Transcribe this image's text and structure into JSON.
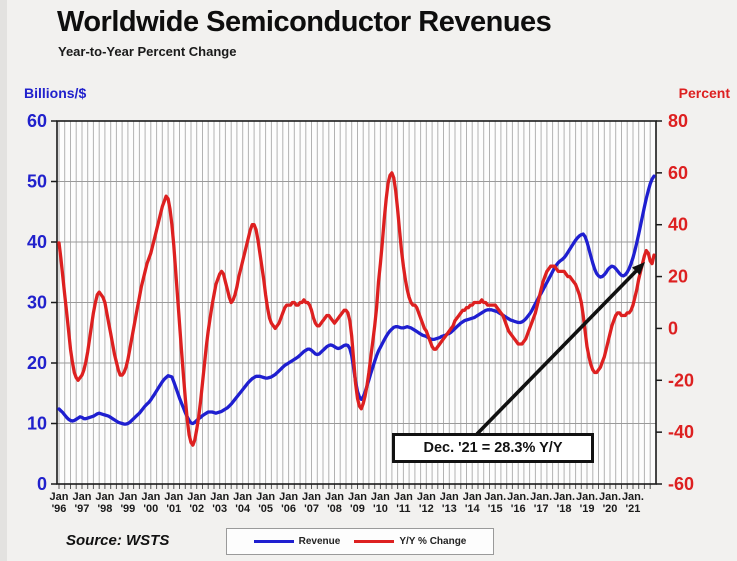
{
  "header": {
    "title": "Worldwide Semiconductor Revenues",
    "subtitle": "Year-to-Year Percent Change"
  },
  "footer": {
    "source": "Source: WSTS"
  },
  "legend": {
    "items": [
      {
        "label": "Revenue",
        "color": "#1f1fd0"
      },
      {
        "label": "Y/Y % Change",
        "color": "#dd2020"
      }
    ]
  },
  "chart_data": {
    "type": "line",
    "title": "Worldwide Semiconductor Revenues",
    "subtitle": "Year-to-Year Percent Change",
    "x_axis": {
      "interval": "monthly",
      "start": "Jan 1996",
      "end": "Dec 2021",
      "tick_labels": [
        [
          "Jan",
          "'96"
        ],
        [
          "Jan",
          "'97"
        ],
        [
          "Jan",
          "'98"
        ],
        [
          "Jan",
          "'99"
        ],
        [
          "Jan",
          "'00"
        ],
        [
          "Jan",
          "'01"
        ],
        [
          "Jan",
          "'02"
        ],
        [
          "Jan",
          "'03"
        ],
        [
          "Jan",
          "'04"
        ],
        [
          "Jan",
          "'05"
        ],
        [
          "Jan",
          "'06"
        ],
        [
          "Jan",
          "'07"
        ],
        [
          "Jan",
          "'08"
        ],
        [
          "Jan",
          "'09"
        ],
        [
          "Jan",
          "'10"
        ],
        [
          "Jan",
          "'11"
        ],
        [
          "Jan",
          "'12"
        ],
        [
          "Jan",
          "'13"
        ],
        [
          "Jan",
          "'14"
        ],
        [
          "Jan.",
          "'15"
        ],
        [
          "Jan.",
          "'16"
        ],
        [
          "Jan.",
          "'17"
        ],
        [
          "Jan.",
          "'18"
        ],
        [
          "Jan.",
          "'19"
        ],
        [
          "Jan.",
          "'20"
        ],
        [
          "Jan.",
          "'21"
        ]
      ],
      "grid": "quarterly vertical gridlines"
    },
    "left_axis": {
      "unit_label": "Billions/$",
      "range": [
        0,
        60
      ],
      "ticks": [
        0,
        10,
        20,
        30,
        40,
        50,
        60
      ],
      "color": "#2121cc",
      "series": "Revenue"
    },
    "right_axis": {
      "unit_label": "Percent",
      "range": [
        -60,
        80
      ],
      "ticks": [
        -60,
        -40,
        -20,
        0,
        20,
        40,
        60,
        80
      ],
      "color": "#dd2020",
      "series": "Y/Y % Change"
    },
    "annotation": {
      "text": "Dec. '21 = 28.3% Y/Y",
      "points_to": "Dec 2021 value of Y/Y % Change line"
    },
    "series": [
      {
        "name": "Revenue",
        "axis": "left",
        "color": "#1f1fd0",
        "monthly_values": [
          12.4,
          12.1,
          11.8,
          11.4,
          11.0,
          10.7,
          10.5,
          10.4,
          10.5,
          10.7,
          10.9,
          11.1,
          11.0,
          10.8,
          10.8,
          10.9,
          11.0,
          11.1,
          11.2,
          11.4,
          11.6,
          11.7,
          11.6,
          11.5,
          11.4,
          11.3,
          11.2,
          11.0,
          10.8,
          10.6,
          10.4,
          10.2,
          10.1,
          10.0,
          9.9,
          9.9,
          10.0,
          10.2,
          10.5,
          10.8,
          11.1,
          11.4,
          11.7,
          12.1,
          12.5,
          12.9,
          13.2,
          13.5,
          13.9,
          14.4,
          14.9,
          15.4,
          15.9,
          16.4,
          16.9,
          17.3,
          17.6,
          17.9,
          17.8,
          17.7,
          16.9,
          16.0,
          15.1,
          14.2,
          13.4,
          12.6,
          11.8,
          11.1,
          10.5,
          10.1,
          10.0,
          10.2,
          10.5,
          10.8,
          11.0,
          11.3,
          11.5,
          11.7,
          11.9,
          11.9,
          11.9,
          11.8,
          11.7,
          11.8,
          11.9,
          12.0,
          12.2,
          12.4,
          12.6,
          12.9,
          13.2,
          13.6,
          14.0,
          14.4,
          14.8,
          15.2,
          15.6,
          16.0,
          16.4,
          16.8,
          17.1,
          17.4,
          17.6,
          17.8,
          17.8,
          17.8,
          17.7,
          17.6,
          17.5,
          17.5,
          17.6,
          17.7,
          17.9,
          18.1,
          18.4,
          18.7,
          19.0,
          19.3,
          19.6,
          19.8,
          20.0,
          20.2,
          20.4,
          20.6,
          20.8,
          21.0,
          21.3,
          21.6,
          21.9,
          22.1,
          22.3,
          22.3,
          22.1,
          21.8,
          21.5,
          21.4,
          21.5,
          21.8,
          22.1,
          22.4,
          22.7,
          22.9,
          23.0,
          22.9,
          22.7,
          22.5,
          22.4,
          22.5,
          22.7,
          22.9,
          23.0,
          22.9,
          22.4,
          21.2,
          19.2,
          17.0,
          15.3,
          14.4,
          14.0,
          14.4,
          15.2,
          16.2,
          17.2,
          18.3,
          19.3,
          20.3,
          21.2,
          22.0,
          22.6,
          23.2,
          23.8,
          24.4,
          24.9,
          25.3,
          25.6,
          25.9,
          26.0,
          26.0,
          25.9,
          25.8,
          25.8,
          25.9,
          26.0,
          25.9,
          25.8,
          25.6,
          25.4,
          25.2,
          25.0,
          24.8,
          24.6,
          24.5,
          24.4,
          24.2,
          24.0,
          23.9,
          23.9,
          24.0,
          24.1,
          24.2,
          24.4,
          24.5,
          24.6,
          24.8,
          24.9,
          25.1,
          25.4,
          25.7,
          26.0,
          26.3,
          26.6,
          26.8,
          27.0,
          27.1,
          27.2,
          27.3,
          27.4,
          27.5,
          27.7,
          27.9,
          28.1,
          28.3,
          28.5,
          28.7,
          28.8,
          28.8,
          28.8,
          28.7,
          28.6,
          28.5,
          28.3,
          28.1,
          27.9,
          27.7,
          27.5,
          27.3,
          27.1,
          27.0,
          26.9,
          26.8,
          26.7,
          26.7,
          26.8,
          27.0,
          27.3,
          27.7,
          28.1,
          28.6,
          29.2,
          29.8,
          30.4,
          31.0,
          31.5,
          32.1,
          32.7,
          33.3,
          33.9,
          34.5,
          35.1,
          35.7,
          36.2,
          36.6,
          36.9,
          37.1,
          37.4,
          37.8,
          38.3,
          38.8,
          39.3,
          39.8,
          40.3,
          40.7,
          41.0,
          41.2,
          41.3,
          40.9,
          40.0,
          38.8,
          37.6,
          36.5,
          35.5,
          34.8,
          34.4,
          34.2,
          34.3,
          34.6,
          35.0,
          35.5,
          35.8,
          36.0,
          35.9,
          35.6,
          35.2,
          34.8,
          34.5,
          34.4,
          34.6,
          35.0,
          35.6,
          36.4,
          37.4,
          38.6,
          39.9,
          41.3,
          42.8,
          44.3,
          45.8,
          47.2,
          48.5,
          49.6,
          50.4,
          50.9
        ]
      },
      {
        "name": "Y/Y % Change",
        "axis": "right",
        "color": "#dd2020",
        "monthly_values": [
          33,
          27,
          20,
          13,
          6,
          -1,
          -8,
          -13,
          -17,
          -19,
          -20,
          -19,
          -18,
          -16,
          -13,
          -9,
          -4,
          1,
          6,
          10,
          13,
          14,
          13,
          12,
          10,
          6,
          2,
          -2,
          -6,
          -10,
          -13,
          -16,
          -18,
          -18,
          -17,
          -15,
          -12,
          -8,
          -4,
          0,
          4,
          8,
          12,
          16,
          19,
          22,
          25,
          27,
          29,
          32,
          35,
          38,
          41,
          44,
          47,
          49,
          51,
          50,
          46,
          40,
          32,
          22,
          12,
          2,
          -8,
          -18,
          -27,
          -35,
          -41,
          -44,
          -45,
          -43,
          -39,
          -34,
          -28,
          -21,
          -14,
          -7,
          -1,
          4,
          9,
          13,
          17,
          19,
          21,
          22,
          21,
          18,
          15,
          12,
          10,
          11,
          13,
          16,
          20,
          23,
          26,
          29,
          32,
          35,
          38,
          40,
          40,
          38,
          34,
          29,
          24,
          19,
          13,
          8,
          4,
          2,
          1,
          0,
          1,
          2,
          4,
          6,
          8,
          9,
          9,
          9,
          10,
          10,
          9,
          9,
          10,
          10,
          11,
          10,
          10,
          9,
          7,
          4,
          2,
          1,
          1,
          2,
          3,
          4,
          5,
          5,
          4,
          3,
          2,
          3,
          4,
          5,
          6,
          7,
          7,
          6,
          3,
          -3,
          -12,
          -21,
          -27,
          -30,
          -31,
          -29,
          -26,
          -22,
          -17,
          -11,
          -5,
          1,
          8,
          18,
          25,
          33,
          42,
          50,
          56,
          59,
          60,
          58,
          53,
          46,
          38,
          30,
          24,
          19,
          15,
          12,
          10,
          9,
          9,
          8,
          6,
          4,
          2,
          0,
          -1,
          -3,
          -5,
          -7,
          -8,
          -8,
          -7,
          -6,
          -5,
          -4,
          -3,
          -2,
          -1,
          0,
          1,
          3,
          4,
          5,
          6,
          7,
          7,
          8,
          8,
          9,
          9,
          10,
          10,
          10,
          10,
          11,
          10,
          10,
          9,
          9,
          9,
          9,
          9,
          8,
          7,
          6,
          5,
          3,
          1,
          -1,
          -2,
          -3,
          -4,
          -5,
          -6,
          -6,
          -6,
          -5,
          -4,
          -2,
          0,
          2,
          4,
          6,
          9,
          12,
          15,
          18,
          20,
          22,
          23,
          24,
          24,
          24,
          23,
          22,
          22,
          22,
          22,
          21,
          20,
          20,
          19,
          18,
          17,
          15,
          13,
          10,
          5,
          -1,
          -7,
          -11,
          -14,
          -16,
          -17,
          -17,
          -16,
          -15,
          -13,
          -11,
          -8,
          -5,
          -2,
          1,
          3,
          5,
          6,
          6,
          5,
          5,
          5,
          6,
          6,
          7,
          9,
          12,
          15,
          19,
          22,
          25,
          28,
          30,
          29,
          26,
          25,
          28.3
        ]
      }
    ]
  }
}
